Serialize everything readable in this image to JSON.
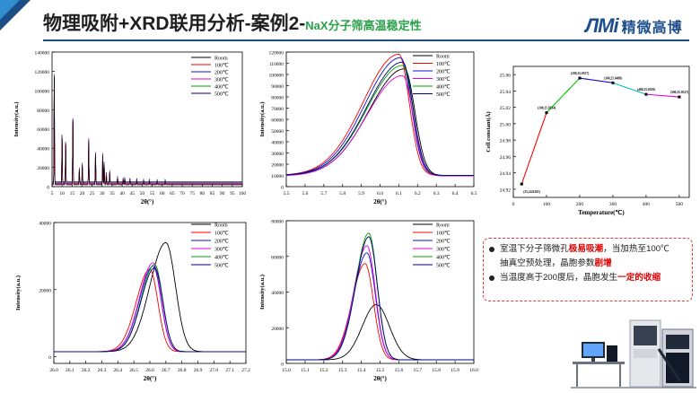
{
  "header": {
    "title_main": "物理吸附+XRD联用分析-案例2-",
    "title_sub": "NaX分子筛高温稳定性",
    "logo_mark": "ЛMi",
    "logo_name": "精微高博"
  },
  "legend_labels": [
    "Room",
    "100℃",
    "200℃",
    "300℃",
    "400℃",
    "500℃"
  ],
  "colors": {
    "Room": "#000000",
    "100": "#ff0000",
    "200": "#1010d0",
    "300": "#e000e0",
    "400": "#00a000",
    "500": "#000080"
  },
  "notes": {
    "line1_a": "室温下分子筛微孔",
    "line1_b": "极易吸潮",
    "line1_c": "，当加热至100℃",
    "line2_a": "抽真空预处理，晶胞参数",
    "line2_b": "剧增",
    "line3_a": "当温度高于200度后，晶胞发生",
    "line3_b": "一定的收缩"
  },
  "chart_data": [
    {
      "id": "xrd-full",
      "type": "line",
      "xlabel": "2θ(°)",
      "ylabel": "Intensity(a.u.)",
      "xlim": [
        5,
        100
      ],
      "ylim": [
        0,
        140000
      ],
      "xticks": [
        5,
        10,
        15,
        20,
        25,
        30,
        35,
        40,
        45,
        50,
        55,
        60,
        65,
        70,
        75,
        80,
        85,
        90,
        95,
        100
      ],
      "yticks": [
        0,
        20000,
        40000,
        60000,
        80000,
        100000,
        120000,
        140000
      ],
      "legend": "top-right",
      "peaks": [
        [
          6.1,
          120000
        ],
        [
          10.0,
          52000
        ],
        [
          11.8,
          45000
        ],
        [
          15.4,
          72000
        ],
        [
          18.6,
          15000
        ],
        [
          20.1,
          20000
        ],
        [
          23.3,
          48000
        ],
        [
          26.7,
          33000
        ],
        [
          30.3,
          31000
        ],
        [
          31.0,
          22000
        ],
        [
          32.1,
          10000
        ],
        [
          33.8,
          12000
        ],
        [
          37.7,
          6000
        ],
        [
          40.5,
          4000
        ],
        [
          41.3,
          5000
        ],
        [
          43.9,
          4000
        ],
        [
          47.3,
          3500
        ],
        [
          50.7,
          3000
        ],
        [
          53.6,
          3000
        ],
        [
          57.5,
          2500
        ],
        [
          61.5,
          2500
        ]
      ],
      "baseline": 2000
    },
    {
      "id": "zoom-6",
      "type": "line",
      "xlabel": "2θ(°)",
      "ylabel": "Intensity(a.u.)",
      "xlim": [
        5.5,
        6.5
      ],
      "ylim": [
        0,
        120000
      ],
      "xticks": [
        5.5,
        5.6,
        5.7,
        5.8,
        5.9,
        6.0,
        6.1,
        6.2,
        6.3,
        6.4,
        6.5
      ],
      "yticks": [
        0,
        10000,
        20000,
        30000,
        40000,
        50000,
        60000,
        70000,
        80000,
        90000,
        100000,
        110000,
        120000
      ],
      "legend": "top-right",
      "series": [
        {
          "name": "Room",
          "center": 6.13,
          "height": 105000,
          "base": 10000
        },
        {
          "name": "100℃",
          "center": 6.1,
          "height": 118000,
          "base": 10000
        },
        {
          "name": "200℃",
          "center": 6.11,
          "height": 115000,
          "base": 10000
        },
        {
          "name": "300℃",
          "center": 6.12,
          "height": 99000,
          "base": 9500
        },
        {
          "name": "400℃",
          "center": 6.12,
          "height": 108000,
          "base": 10000
        },
        {
          "name": "500℃",
          "center": 6.12,
          "height": 111000,
          "base": 10000
        }
      ]
    },
    {
      "id": "cell-constant",
      "type": "line",
      "xlabel": "Temperature(℃)",
      "ylabel": "Cell constant(Å)",
      "xlim": [
        0,
        530
      ],
      "ylim": [
        24.91,
        25.07
      ],
      "xticks": [
        0,
        100,
        200,
        300,
        400,
        500
      ],
      "yticks": [
        24.92,
        24.94,
        24.96,
        24.98,
        25.0,
        25.02,
        25.04,
        25.06
      ],
      "x": [
        25,
        100,
        200,
        300,
        400,
        500
      ],
      "y": [
        24.9263,
        25.0134,
        25.0557,
        25.0499,
        25.0359,
        25.0327
      ],
      "point_labels": [
        "(25,24.9263)",
        "(100,25.0134)",
        "(200,25.0557)",
        "(300,25.0499)",
        "(400,25.0359)",
        "(500,25.0327)"
      ]
    },
    {
      "id": "zoom-26",
      "type": "line",
      "xlabel": "2θ(°)",
      "ylabel": "Intensity(a.u.)",
      "xlim": [
        26.0,
        27.2
      ],
      "ylim": [
        -2000,
        40000
      ],
      "xticks": [
        26.0,
        26.1,
        26.2,
        26.3,
        26.4,
        26.5,
        26.6,
        26.7,
        26.8,
        26.9,
        27.0,
        27.1,
        27.2
      ],
      "yticks": [
        0,
        20000,
        40000
      ],
      "legend": "top-right",
      "series": [
        {
          "name": "Room",
          "center": 26.7,
          "height": 34000,
          "base": 1500
        },
        {
          "name": "100℃",
          "center": 26.6,
          "height": 26000,
          "base": 1500
        },
        {
          "name": "200℃",
          "center": 26.62,
          "height": 27000,
          "base": 1500
        },
        {
          "name": "300℃",
          "center": 26.62,
          "height": 28000,
          "base": 1500
        },
        {
          "name": "400℃",
          "center": 26.63,
          "height": 27500,
          "base": 1500
        },
        {
          "name": "500℃",
          "center": 26.63,
          "height": 26500,
          "base": 1500
        }
      ]
    },
    {
      "id": "zoom-15",
      "type": "line",
      "xlabel": "2θ(°)",
      "ylabel": "Intensity(a.u.)",
      "xlim": [
        15.0,
        16.0
      ],
      "ylim": [
        0,
        80000
      ],
      "xticks": [
        15.0,
        15.1,
        15.2,
        15.3,
        15.4,
        15.5,
        15.6,
        15.7,
        15.8,
        15.9,
        16.0
      ],
      "yticks": [
        0,
        20000,
        40000,
        60000,
        80000
      ],
      "legend": "top-right",
      "series": [
        {
          "name": "Room",
          "center": 15.48,
          "height": 33000,
          "base": 2000
        },
        {
          "name": "100℃",
          "center": 15.42,
          "height": 56000,
          "base": 2000
        },
        {
          "name": "200℃",
          "center": 15.43,
          "height": 62000,
          "base": 2000
        },
        {
          "name": "300℃",
          "center": 15.43,
          "height": 66000,
          "base": 2000
        },
        {
          "name": "400℃",
          "center": 15.44,
          "height": 73000,
          "base": 2000
        },
        {
          "name": "500℃",
          "center": 15.44,
          "height": 71000,
          "base": 2000
        }
      ]
    }
  ]
}
